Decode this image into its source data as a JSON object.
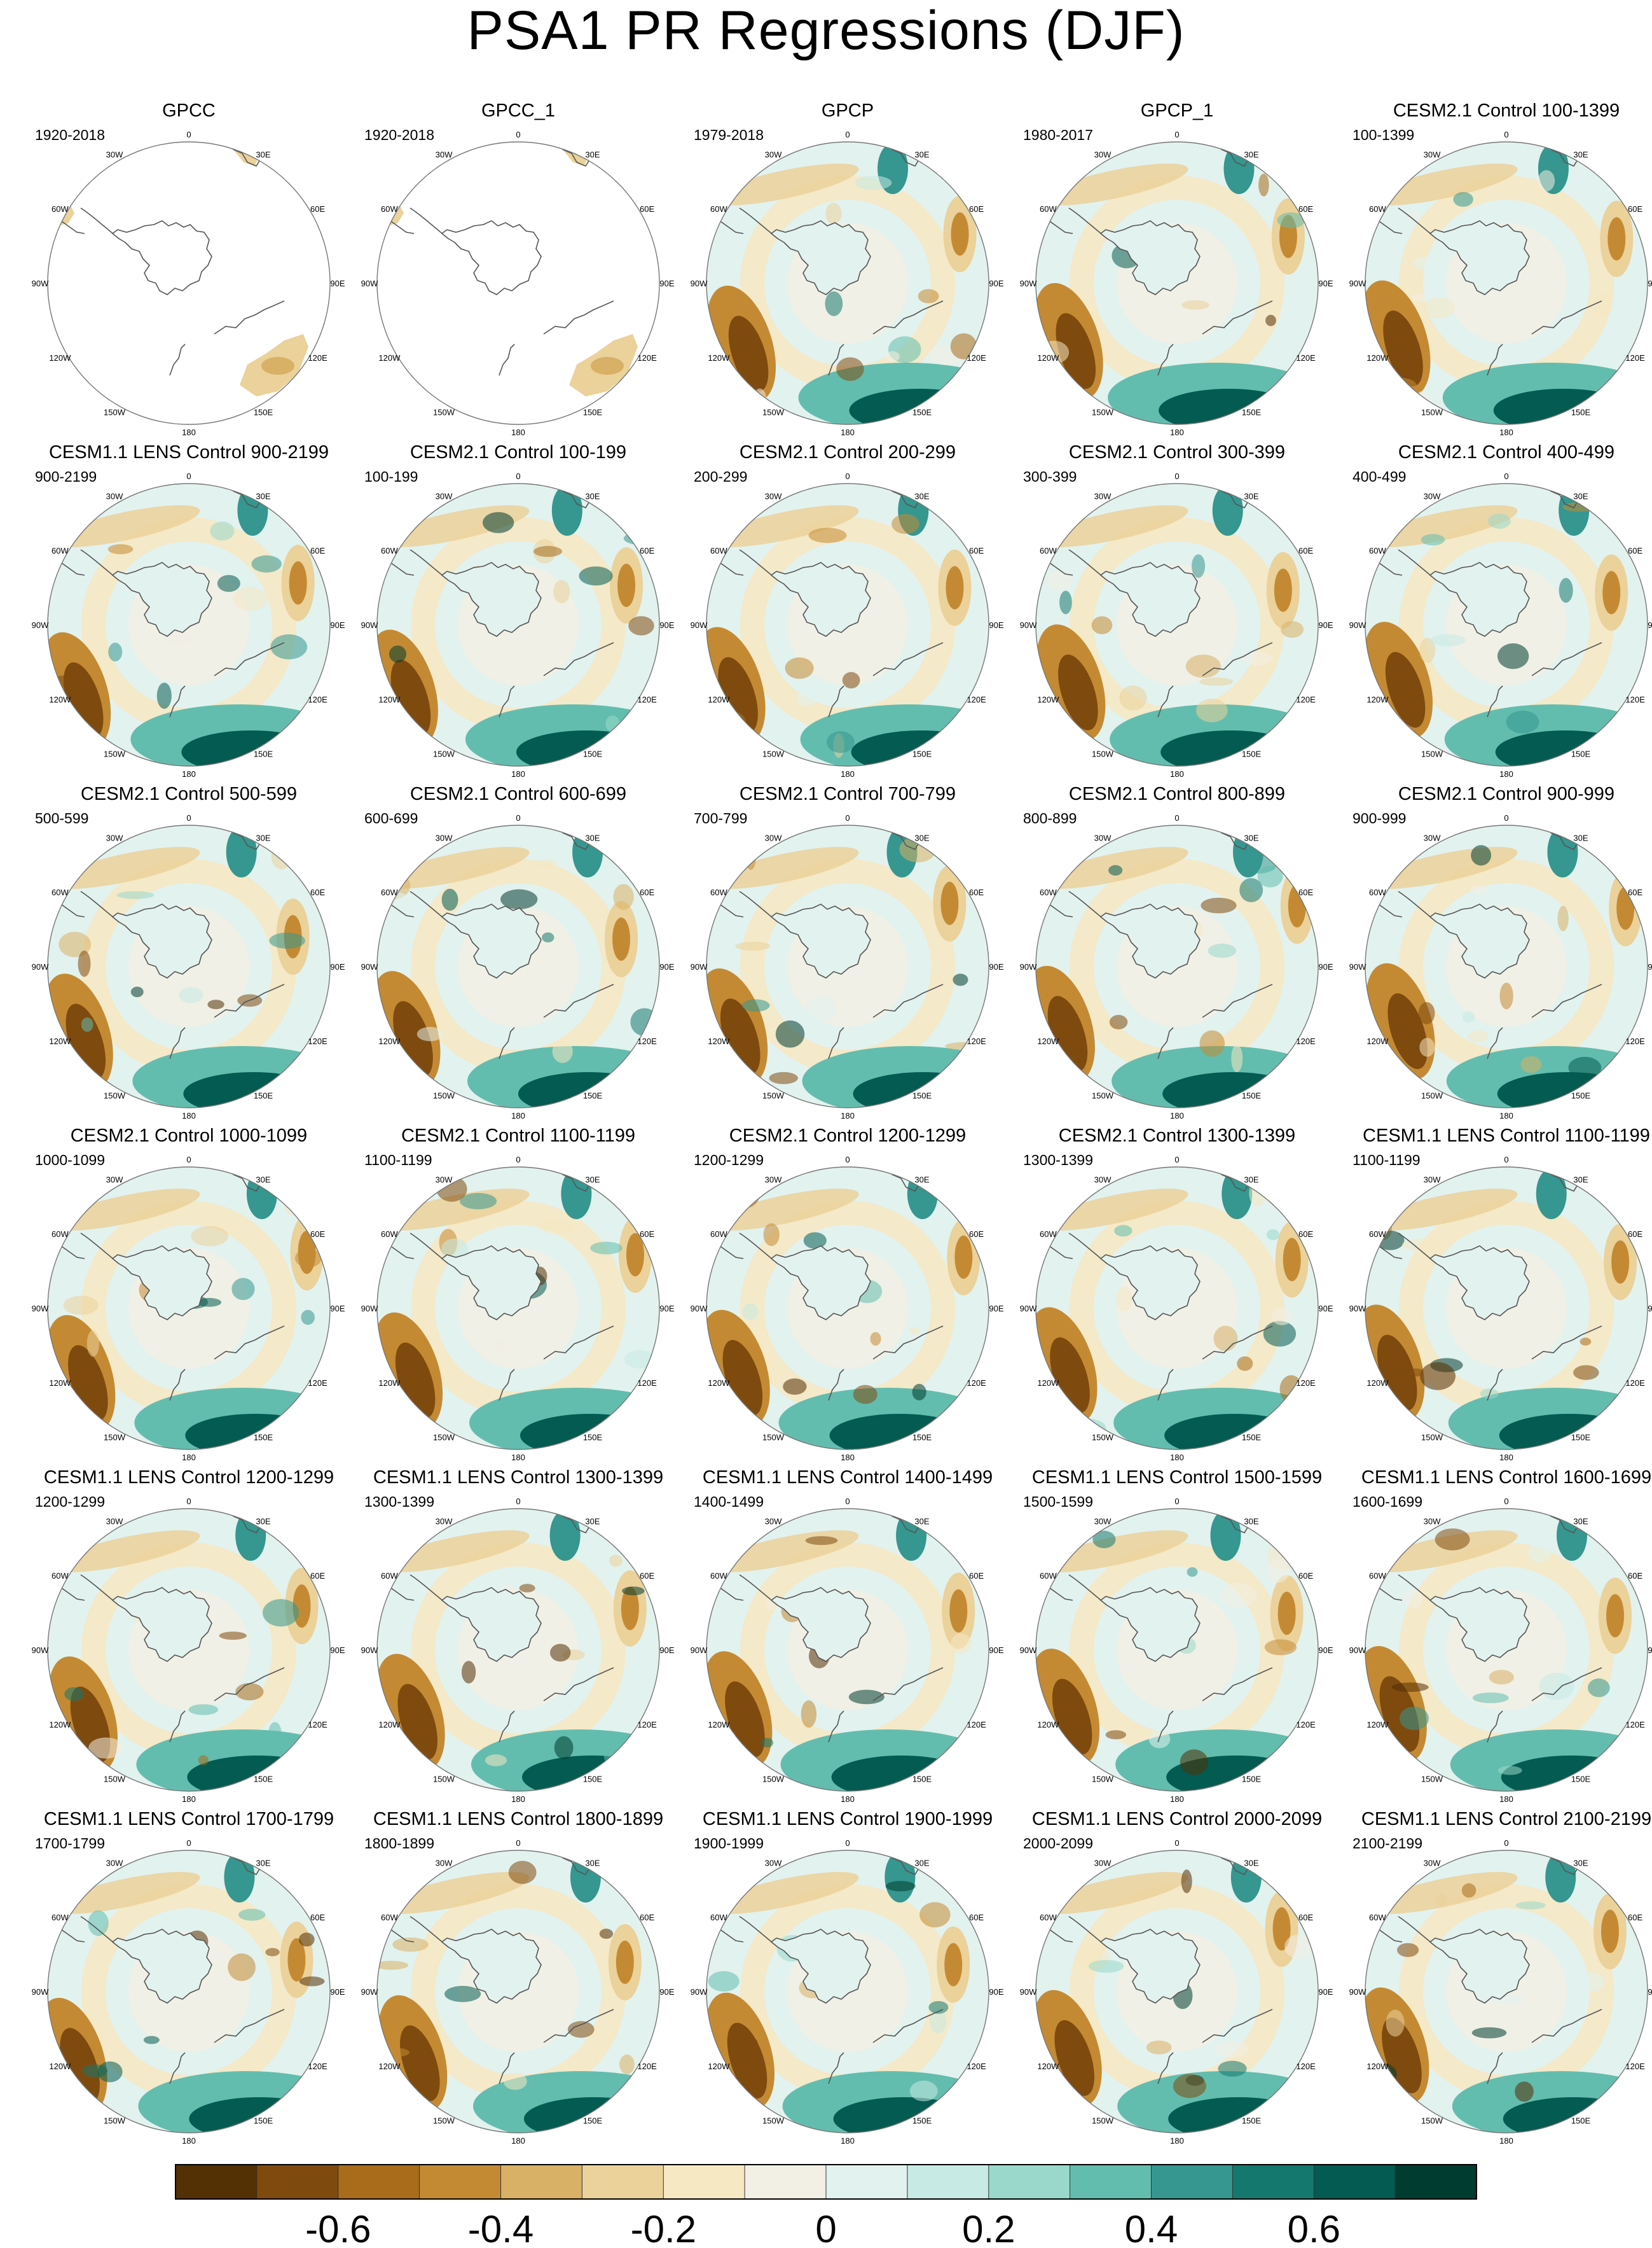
{
  "title": "PSA1 PR Regressions (DJF)",
  "lon_labels": [
    "0",
    "30E",
    "60E",
    "90E",
    "120E",
    "150E",
    "180",
    "150W",
    "120W",
    "90W",
    "60W",
    "30W"
  ],
  "panels": [
    {
      "title": "GPCC",
      "years": "1920-2018",
      "coverage": "land-only"
    },
    {
      "title": "GPCC_1",
      "years": "1920-2018",
      "coverage": "land-only"
    },
    {
      "title": "GPCP",
      "years": "1979-2018",
      "coverage": "full"
    },
    {
      "title": "GPCP_1",
      "years": "1980-2017",
      "coverage": "full"
    },
    {
      "title": "CESM2.1 Control 100-1399",
      "years": "100-1399",
      "coverage": "full"
    },
    {
      "title": "CESM1.1 LENS Control 900-2199",
      "years": "900-2199",
      "coverage": "full"
    },
    {
      "title": "CESM2.1 Control 100-199",
      "years": "100-199",
      "coverage": "full"
    },
    {
      "title": "CESM2.1 Control 200-299",
      "years": "200-299",
      "coverage": "full"
    },
    {
      "title": "CESM2.1 Control 300-399",
      "years": "300-399",
      "coverage": "full"
    },
    {
      "title": "CESM2.1 Control 400-499",
      "years": "400-499",
      "coverage": "full"
    },
    {
      "title": "CESM2.1 Control 500-599",
      "years": "500-599",
      "coverage": "full"
    },
    {
      "title": "CESM2.1 Control 600-699",
      "years": "600-699",
      "coverage": "full"
    },
    {
      "title": "CESM2.1 Control 700-799",
      "years": "700-799",
      "coverage": "full"
    },
    {
      "title": "CESM2.1 Control 800-899",
      "years": "800-899",
      "coverage": "full"
    },
    {
      "title": "CESM2.1 Control 900-999",
      "years": "900-999",
      "coverage": "full"
    },
    {
      "title": "CESM2.1 Control 1000-1099",
      "years": "1000-1099",
      "coverage": "full"
    },
    {
      "title": "CESM2.1 Control 1100-1199",
      "years": "1100-1199",
      "coverage": "full"
    },
    {
      "title": "CESM2.1 Control 1200-1299",
      "years": "1200-1299",
      "coverage": "full"
    },
    {
      "title": "CESM2.1 Control 1300-1399",
      "years": "1300-1399",
      "coverage": "full"
    },
    {
      "title": "CESM1.1 LENS Control 1100-1199",
      "years": "1100-1199",
      "coverage": "full"
    },
    {
      "title": "CESM1.1 LENS Control 1200-1299",
      "years": "1200-1299",
      "coverage": "full"
    },
    {
      "title": "CESM1.1 LENS Control 1300-1399",
      "years": "1300-1399",
      "coverage": "full"
    },
    {
      "title": "CESM1.1 LENS Control 1400-1499",
      "years": "1400-1499",
      "coverage": "full"
    },
    {
      "title": "CESM1.1 LENS Control 1500-1599",
      "years": "1500-1599",
      "coverage": "full"
    },
    {
      "title": "CESM1.1 LENS Control 1600-1699",
      "years": "1600-1699",
      "coverage": "full"
    },
    {
      "title": "CESM1.1 LENS Control 1700-1799",
      "years": "1700-1799",
      "coverage": "full"
    },
    {
      "title": "CESM1.1 LENS Control 1800-1899",
      "years": "1800-1899",
      "coverage": "full"
    },
    {
      "title": "CESM1.1 LENS Control 1900-1999",
      "years": "1900-1999",
      "coverage": "full"
    },
    {
      "title": "CESM1.1 LENS Control 2000-2099",
      "years": "2000-2099",
      "coverage": "full"
    },
    {
      "title": "CESM1.1 LENS Control 2100-2199",
      "years": "2100-2199",
      "coverage": "full"
    }
  ],
  "colorbar": {
    "colors": [
      "#543005",
      "#7f4a0e",
      "#a96c1a",
      "#c48a33",
      "#d8b066",
      "#ebd19a",
      "#f6e8c3",
      "#f2efe4",
      "#e2f2ef",
      "#c7eae4",
      "#99d8cb",
      "#63bdae",
      "#35978f",
      "#15786e",
      "#035b51",
      "#003c30"
    ],
    "labels": [
      "-0.6",
      "-0.4",
      "-0.2",
      "0",
      "0.2",
      "0.4",
      "0.6"
    ]
  }
}
